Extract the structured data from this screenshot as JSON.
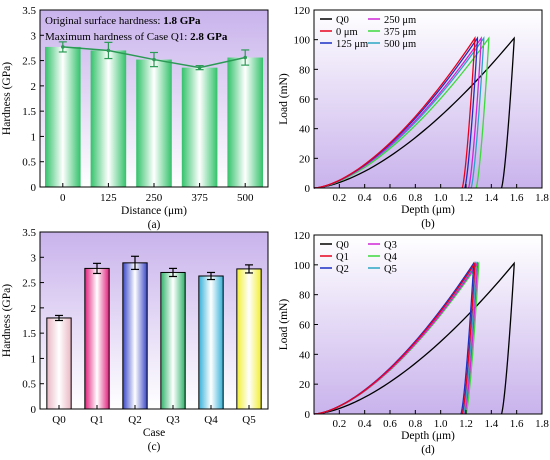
{
  "chart_data": [
    {
      "type": "bar",
      "panel_label": "(a)",
      "categories": [
        "0",
        "125",
        "250",
        "375",
        "500"
      ],
      "values": [
        2.77,
        2.7,
        2.52,
        2.36,
        2.56
      ],
      "errors": [
        0.1,
        0.16,
        0.14,
        0.04,
        0.15
      ],
      "line_overlay": true,
      "xlabel": "Distance (μm)",
      "ylabel": "Hardness (GPa)",
      "ylim": [
        0,
        3.5
      ],
      "yticks": [
        "0",
        "0.5",
        "1",
        "1.5",
        "2",
        "2.5",
        "3",
        "3.5"
      ],
      "annotations": [
        {
          "prefix": "Original surface hardness: ",
          "value": "1.8 GPa"
        },
        {
          "prefix": "Maximum hardness of Case Q1: ",
          "value": "2.8 GPa"
        }
      ],
      "colors": {
        "bar": "#33c26a",
        "line": "#2b9a55",
        "panel_bg": "#c9b3ec"
      }
    },
    {
      "type": "line",
      "panel_label": "(b)",
      "xlabel": "Depth (μm)",
      "ylabel": "Load (mN)",
      "xlim": [
        0,
        1.8
      ],
      "ylim": [
        0,
        120
      ],
      "xticks": [
        "0.2",
        "0.4",
        "0.6",
        "0.8",
        "1.0",
        "1.2",
        "1.4",
        "1.6",
        "1.8"
      ],
      "yticks": [
        "0",
        "20",
        "40",
        "60",
        "80",
        "100",
        "120"
      ],
      "legend_placement": "top-left",
      "series": [
        {
          "name": "Q0",
          "color": "#000000",
          "peak_load": 101,
          "max_depth": 1.58,
          "residual_depth": 1.48
        },
        {
          "name": "0 μm",
          "color": "#e8001c",
          "peak_load": 101,
          "max_depth": 1.27,
          "residual_depth": 1.17
        },
        {
          "name": "125 μm",
          "color": "#1a2fc4",
          "peak_load": 101,
          "max_depth": 1.29,
          "residual_depth": 1.19
        },
        {
          "name": "250 μm",
          "color": "#d026d6",
          "peak_load": 101,
          "max_depth": 1.32,
          "residual_depth": 1.22
        },
        {
          "name": "375 μm",
          "color": "#3dd93d",
          "peak_load": 101,
          "max_depth": 1.38,
          "residual_depth": 1.28
        },
        {
          "name": "500 μm",
          "color": "#2aa6c4",
          "peak_load": 101,
          "max_depth": 1.34,
          "residual_depth": 1.24
        }
      ]
    },
    {
      "type": "bar",
      "panel_label": "(c)",
      "categories": [
        "Q0",
        "Q1",
        "Q2",
        "Q3",
        "Q4",
        "Q5"
      ],
      "values": [
        1.8,
        2.78,
        2.89,
        2.7,
        2.63,
        2.77
      ],
      "errors": [
        0.05,
        0.1,
        0.13,
        0.08,
        0.07,
        0.08
      ],
      "xlabel": "Case",
      "ylabel": "Hardness (GPa)",
      "ylim": [
        0,
        3.5
      ],
      "yticks": [
        "0",
        "0.5",
        "1",
        "1.5",
        "2",
        "2.5",
        "3",
        "3.5"
      ],
      "colors": {
        "bars": [
          "#eab7c4",
          "#e0207a",
          "#3a48c8",
          "#2fb46a",
          "#34b0d8",
          "#f2ef30"
        ],
        "panel_bg": "#c9b3ec"
      }
    },
    {
      "type": "line",
      "panel_label": "(d)",
      "xlabel": "Depth (μm)",
      "ylabel": "Load (mN)",
      "xlim": [
        0,
        1.8
      ],
      "ylim": [
        0,
        120
      ],
      "xticks": [
        "0.2",
        "0.4",
        "0.6",
        "0.8",
        "1.0",
        "1.2",
        "1.4",
        "1.6",
        "1.8"
      ],
      "yticks": [
        "0",
        "20",
        "40",
        "60",
        "80",
        "100",
        "120"
      ],
      "legend_placement": "top-left",
      "series": [
        {
          "name": "Q0",
          "color": "#000000",
          "peak_load": 101,
          "max_depth": 1.58,
          "residual_depth": 1.48
        },
        {
          "name": "Q1",
          "color": "#e8001c",
          "peak_load": 101,
          "max_depth": 1.27,
          "residual_depth": 1.17
        },
        {
          "name": "Q2",
          "color": "#1a2fc4",
          "peak_load": 101,
          "max_depth": 1.26,
          "residual_depth": 1.16
        },
        {
          "name": "Q3",
          "color": "#d026d6",
          "peak_load": 101,
          "max_depth": 1.29,
          "residual_depth": 1.19
        },
        {
          "name": "Q4",
          "color": "#3dd93d",
          "peak_load": 101,
          "max_depth": 1.3,
          "residual_depth": 1.2
        },
        {
          "name": "Q5",
          "color": "#2aa6c4",
          "peak_load": 101,
          "max_depth": 1.28,
          "residual_depth": 1.18
        }
      ]
    }
  ]
}
